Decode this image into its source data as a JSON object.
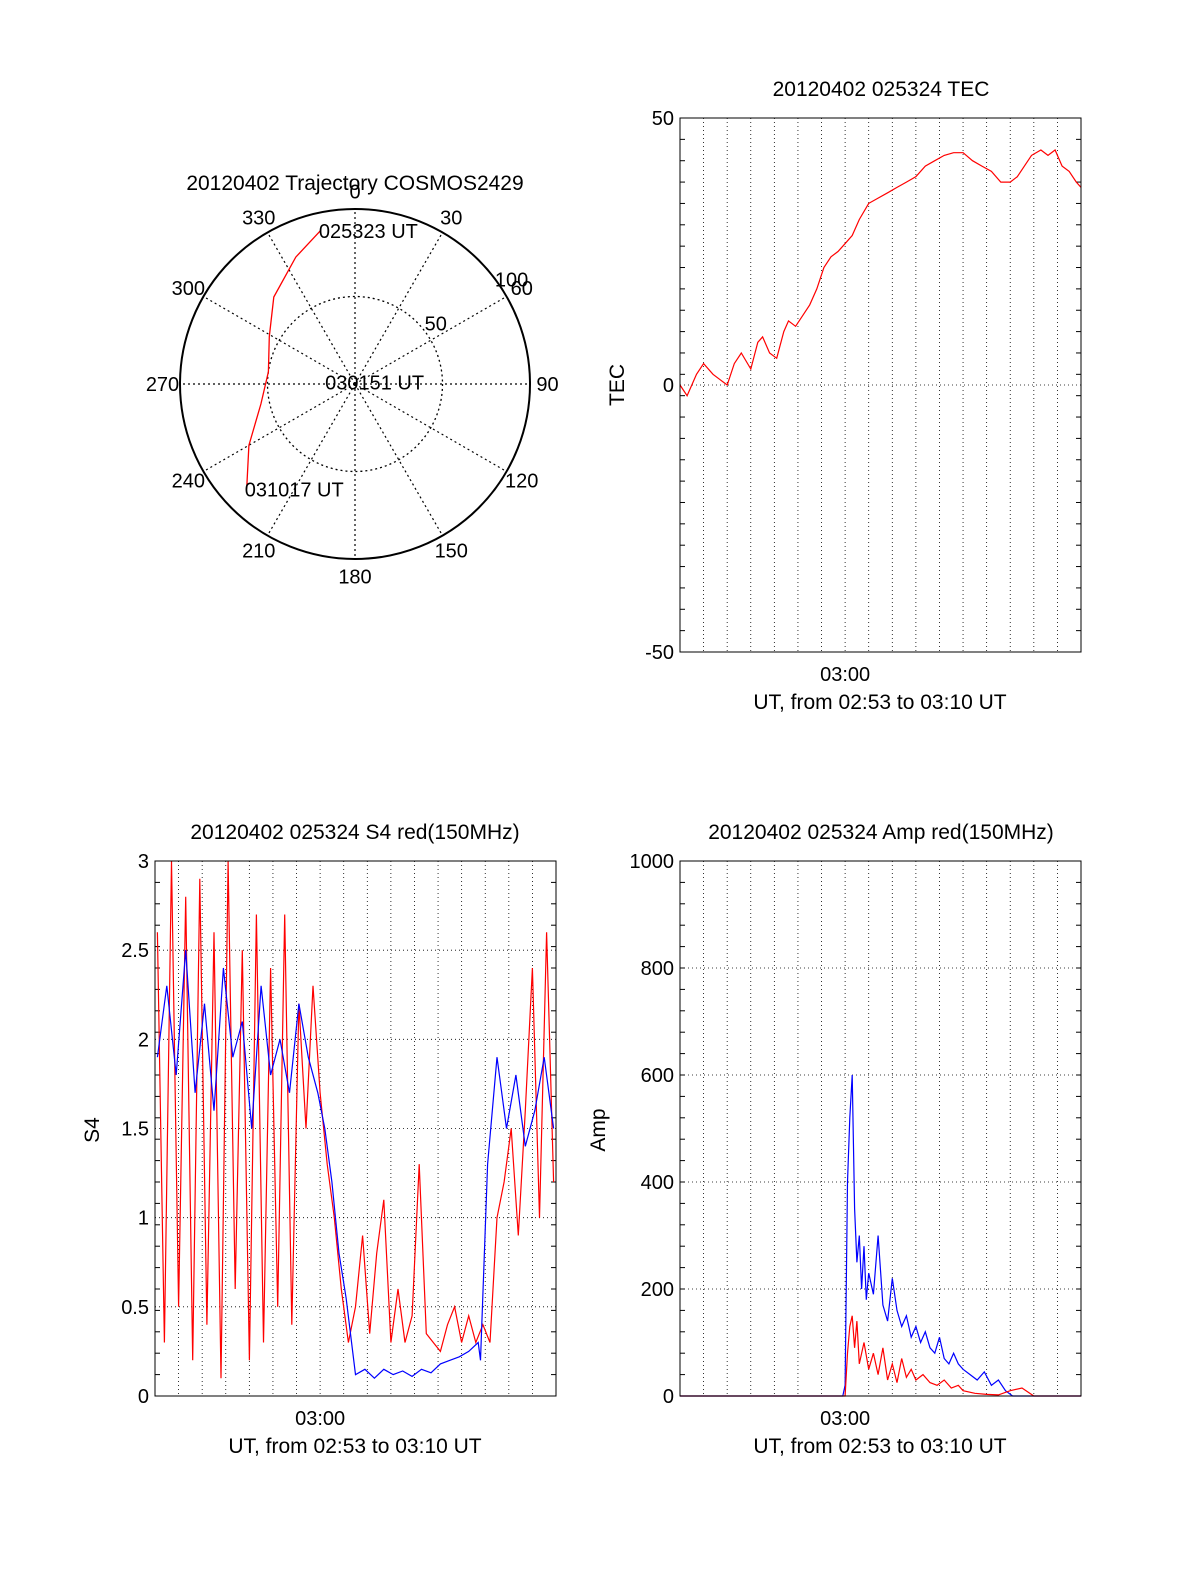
{
  "page": {
    "background": "#ffffff"
  },
  "chart_data": [
    {
      "id": "polar",
      "type": "polar-trajectory",
      "title": "20120402 Trajectory COSMOS2429",
      "azimuth_labels": [
        "0",
        "30",
        "60",
        "90",
        "120",
        "150",
        "180",
        "210",
        "240",
        "270",
        "300",
        "330"
      ],
      "radial_ticks": [
        {
          "elevation": 50,
          "label": "50"
        },
        {
          "elevation": 100,
          "label": "100"
        }
      ],
      "track_color": "#ff0000",
      "trajectory": [
        {
          "az": 347.5,
          "el": 90
        },
        {
          "az": 335,
          "el": 80
        },
        {
          "az": 317,
          "el": 68
        },
        {
          "az": 299,
          "el": 56
        },
        {
          "az": 278,
          "el": 50
        },
        {
          "az": 258,
          "el": 55
        },
        {
          "az": 240,
          "el": 70
        },
        {
          "az": 226,
          "el": 86
        }
      ],
      "annotations": [
        {
          "text": "025323 UT",
          "az": 347.5,
          "el": 90
        },
        {
          "text": "030151 UT",
          "az": 275,
          "el": 16
        },
        {
          "text": "031017 UT",
          "az": 226,
          "el": 86
        }
      ]
    },
    {
      "id": "tec",
      "type": "line",
      "title": "20120402 025324 TEC",
      "ylabel": "TEC",
      "xlabel": "UT, from 02:53 to 03:10 UT",
      "ylim": [
        -50,
        50
      ],
      "yticks": [
        -50,
        0,
        50
      ],
      "xticks": [
        {
          "at": 7,
          "label": "03:00"
        }
      ],
      "xlim_minutes": [
        0,
        17
      ],
      "grid": true,
      "series": [
        {
          "color": "#ff0000",
          "x": [
            0,
            0.3,
            0.7,
            1.0,
            1.4,
            1.7,
            2.0,
            2.3,
            2.6,
            3.0,
            3.3,
            3.5,
            3.8,
            4.1,
            4.4,
            4.6,
            4.9,
            5.2,
            5.5,
            5.8,
            6.1,
            6.4,
            6.7,
            6.9,
            7.3,
            7.6,
            8.0,
            8.4,
            8.8,
            9.2,
            9.6,
            10.0,
            10.4,
            10.8,
            11.2,
            11.6,
            12.0,
            12.4,
            12.8,
            13.2,
            13.6,
            14.0,
            14.3,
            14.6,
            14.9,
            15.3,
            15.6,
            15.9,
            16.2,
            16.5,
            16.8,
            17.0
          ],
          "y": [
            0,
            -2,
            2,
            4,
            2,
            1,
            0,
            4,
            6,
            3,
            8,
            9,
            6,
            5,
            10,
            12,
            11,
            13,
            15,
            18,
            22,
            24,
            25,
            26,
            28,
            31,
            34,
            35,
            36,
            37,
            38,
            39,
            41,
            42,
            43,
            43.5,
            43.5,
            42,
            41,
            40,
            38,
            38,
            39,
            41,
            43,
            44,
            43,
            44,
            41,
            40,
            38,
            37
          ]
        }
      ]
    },
    {
      "id": "s4",
      "type": "line",
      "title": "20120402 025324 S4 red(150MHz)",
      "ylabel": "S4",
      "xlabel": "UT, from 02:53 to 03:10 UT",
      "ylim": [
        0,
        3
      ],
      "yticks": [
        0,
        0.5,
        1,
        1.5,
        2,
        2.5,
        3
      ],
      "ytick_labels": [
        "0",
        "0.5",
        "1",
        "1.5",
        "2",
        "2.5",
        "3"
      ],
      "xticks": [
        {
          "at": 7,
          "label": "03:00"
        }
      ],
      "xlim_minutes": [
        0,
        17
      ],
      "grid": true,
      "series": [
        {
          "color": "#ff0000",
          "x": [
            0.1,
            0.4,
            0.7,
            1.0,
            1.3,
            1.6,
            1.9,
            2.2,
            2.5,
            2.8,
            3.1,
            3.4,
            3.7,
            4.0,
            4.3,
            4.6,
            4.9,
            5.2,
            5.5,
            5.8,
            6.1,
            6.4,
            6.7,
            7.0,
            7.3,
            7.6,
            7.9,
            8.2,
            8.5,
            8.8,
            9.1,
            9.4,
            9.7,
            10.0,
            10.3,
            10.6,
            10.9,
            11.2,
            11.5,
            11.8,
            12.1,
            12.4,
            12.7,
            13.0,
            13.3,
            13.6,
            13.9,
            14.2,
            14.5,
            14.8,
            15.1,
            15.4,
            15.7,
            16.0,
            16.3,
            16.6,
            16.9
          ],
          "y": [
            2.6,
            0.3,
            3.0,
            0.5,
            2.8,
            0.2,
            2.9,
            0.4,
            2.6,
            0.1,
            3.0,
            0.6,
            2.5,
            0.2,
            2.7,
            0.3,
            2.4,
            0.5,
            2.7,
            0.4,
            2.2,
            1.5,
            2.3,
            1.7,
            1.3,
            1.0,
            0.6,
            0.3,
            0.5,
            0.9,
            0.35,
            0.8,
            1.1,
            0.3,
            0.6,
            0.3,
            0.45,
            1.3,
            0.35,
            0.3,
            0.25,
            0.4,
            0.5,
            0.3,
            0.45,
            0.3,
            0.4,
            0.3,
            1.0,
            1.2,
            1.5,
            0.9,
            1.6,
            2.4,
            1.0,
            2.6,
            1.2
          ]
        },
        {
          "color": "#0000ff",
          "x": [
            0.1,
            0.5,
            0.9,
            1.3,
            1.7,
            2.1,
            2.5,
            2.9,
            3.3,
            3.7,
            4.1,
            4.5,
            4.9,
            5.3,
            5.7,
            6.1,
            6.5,
            6.9,
            7.2,
            7.5,
            7.8,
            8.1,
            8.5,
            8.9,
            9.3,
            9.7,
            10.1,
            10.5,
            10.9,
            11.3,
            11.7,
            12.1,
            12.5,
            12.9,
            13.3,
            13.7,
            13.8,
            14.1,
            14.5,
            14.9,
            15.3,
            15.7,
            16.1,
            16.5,
            16.9
          ],
          "y": [
            1.9,
            2.3,
            1.8,
            2.5,
            1.7,
            2.2,
            1.6,
            2.4,
            1.9,
            2.1,
            1.5,
            2.3,
            1.8,
            2.0,
            1.7,
            2.2,
            1.9,
            1.7,
            1.5,
            1.2,
            0.8,
            0.55,
            0.12,
            0.15,
            0.1,
            0.15,
            0.12,
            0.14,
            0.11,
            0.15,
            0.13,
            0.18,
            0.2,
            0.22,
            0.25,
            0.3,
            0.2,
            1.3,
            1.9,
            1.5,
            1.8,
            1.4,
            1.6,
            1.9,
            1.5
          ]
        }
      ]
    },
    {
      "id": "amp",
      "type": "line",
      "title": "20120402 025324 Amp red(150MHz)",
      "ylabel": "Amp",
      "xlabel": "UT, from 02:53 to 03:10 UT",
      "ylim": [
        0,
        1000
      ],
      "yticks": [
        0,
        200,
        400,
        600,
        800,
        1000
      ],
      "ytick_labels": [
        "0",
        "200",
        "400",
        "600",
        "800",
        "1000"
      ],
      "xticks": [
        {
          "at": 7,
          "label": "03:00"
        }
      ],
      "xlim_minutes": [
        0,
        17
      ],
      "grid": true,
      "series": [
        {
          "color": "#0000ff",
          "x": [
            0,
            6.9,
            7.0,
            7.1,
            7.2,
            7.3,
            7.4,
            7.5,
            7.6,
            7.7,
            7.8,
            7.9,
            8.0,
            8.2,
            8.4,
            8.6,
            8.8,
            9.0,
            9.2,
            9.4,
            9.6,
            9.8,
            10.0,
            10.2,
            10.4,
            10.6,
            10.8,
            11.0,
            11.2,
            11.4,
            11.6,
            11.8,
            12.0,
            12.3,
            12.6,
            12.9,
            13.2,
            13.5,
            13.8,
            14.1,
            15.0,
            16.0,
            17.0
          ],
          "y": [
            0,
            0,
            20,
            400,
            520,
            600,
            350,
            250,
            300,
            200,
            280,
            180,
            230,
            190,
            300,
            170,
            140,
            220,
            160,
            130,
            150,
            110,
            130,
            100,
            120,
            90,
            80,
            110,
            70,
            60,
            80,
            60,
            50,
            40,
            30,
            45,
            20,
            30,
            10,
            0,
            0,
            0,
            0
          ]
        },
        {
          "color": "#ff0000",
          "x": [
            0,
            7.0,
            7.1,
            7.2,
            7.3,
            7.4,
            7.5,
            7.6,
            7.8,
            8.0,
            8.2,
            8.4,
            8.6,
            8.8,
            9.0,
            9.2,
            9.4,
            9.6,
            9.8,
            10.0,
            10.3,
            10.6,
            10.9,
            11.2,
            11.5,
            11.8,
            12.0,
            12.5,
            13.0,
            13.5,
            14.0,
            14.5,
            15.0,
            17.0
          ],
          "y": [
            0,
            0,
            80,
            130,
            150,
            90,
            140,
            60,
            100,
            50,
            80,
            40,
            90,
            30,
            60,
            25,
            70,
            35,
            50,
            30,
            40,
            25,
            20,
            30,
            15,
            20,
            10,
            5,
            3,
            2,
            10,
            15,
            0,
            0
          ]
        }
      ]
    }
  ]
}
